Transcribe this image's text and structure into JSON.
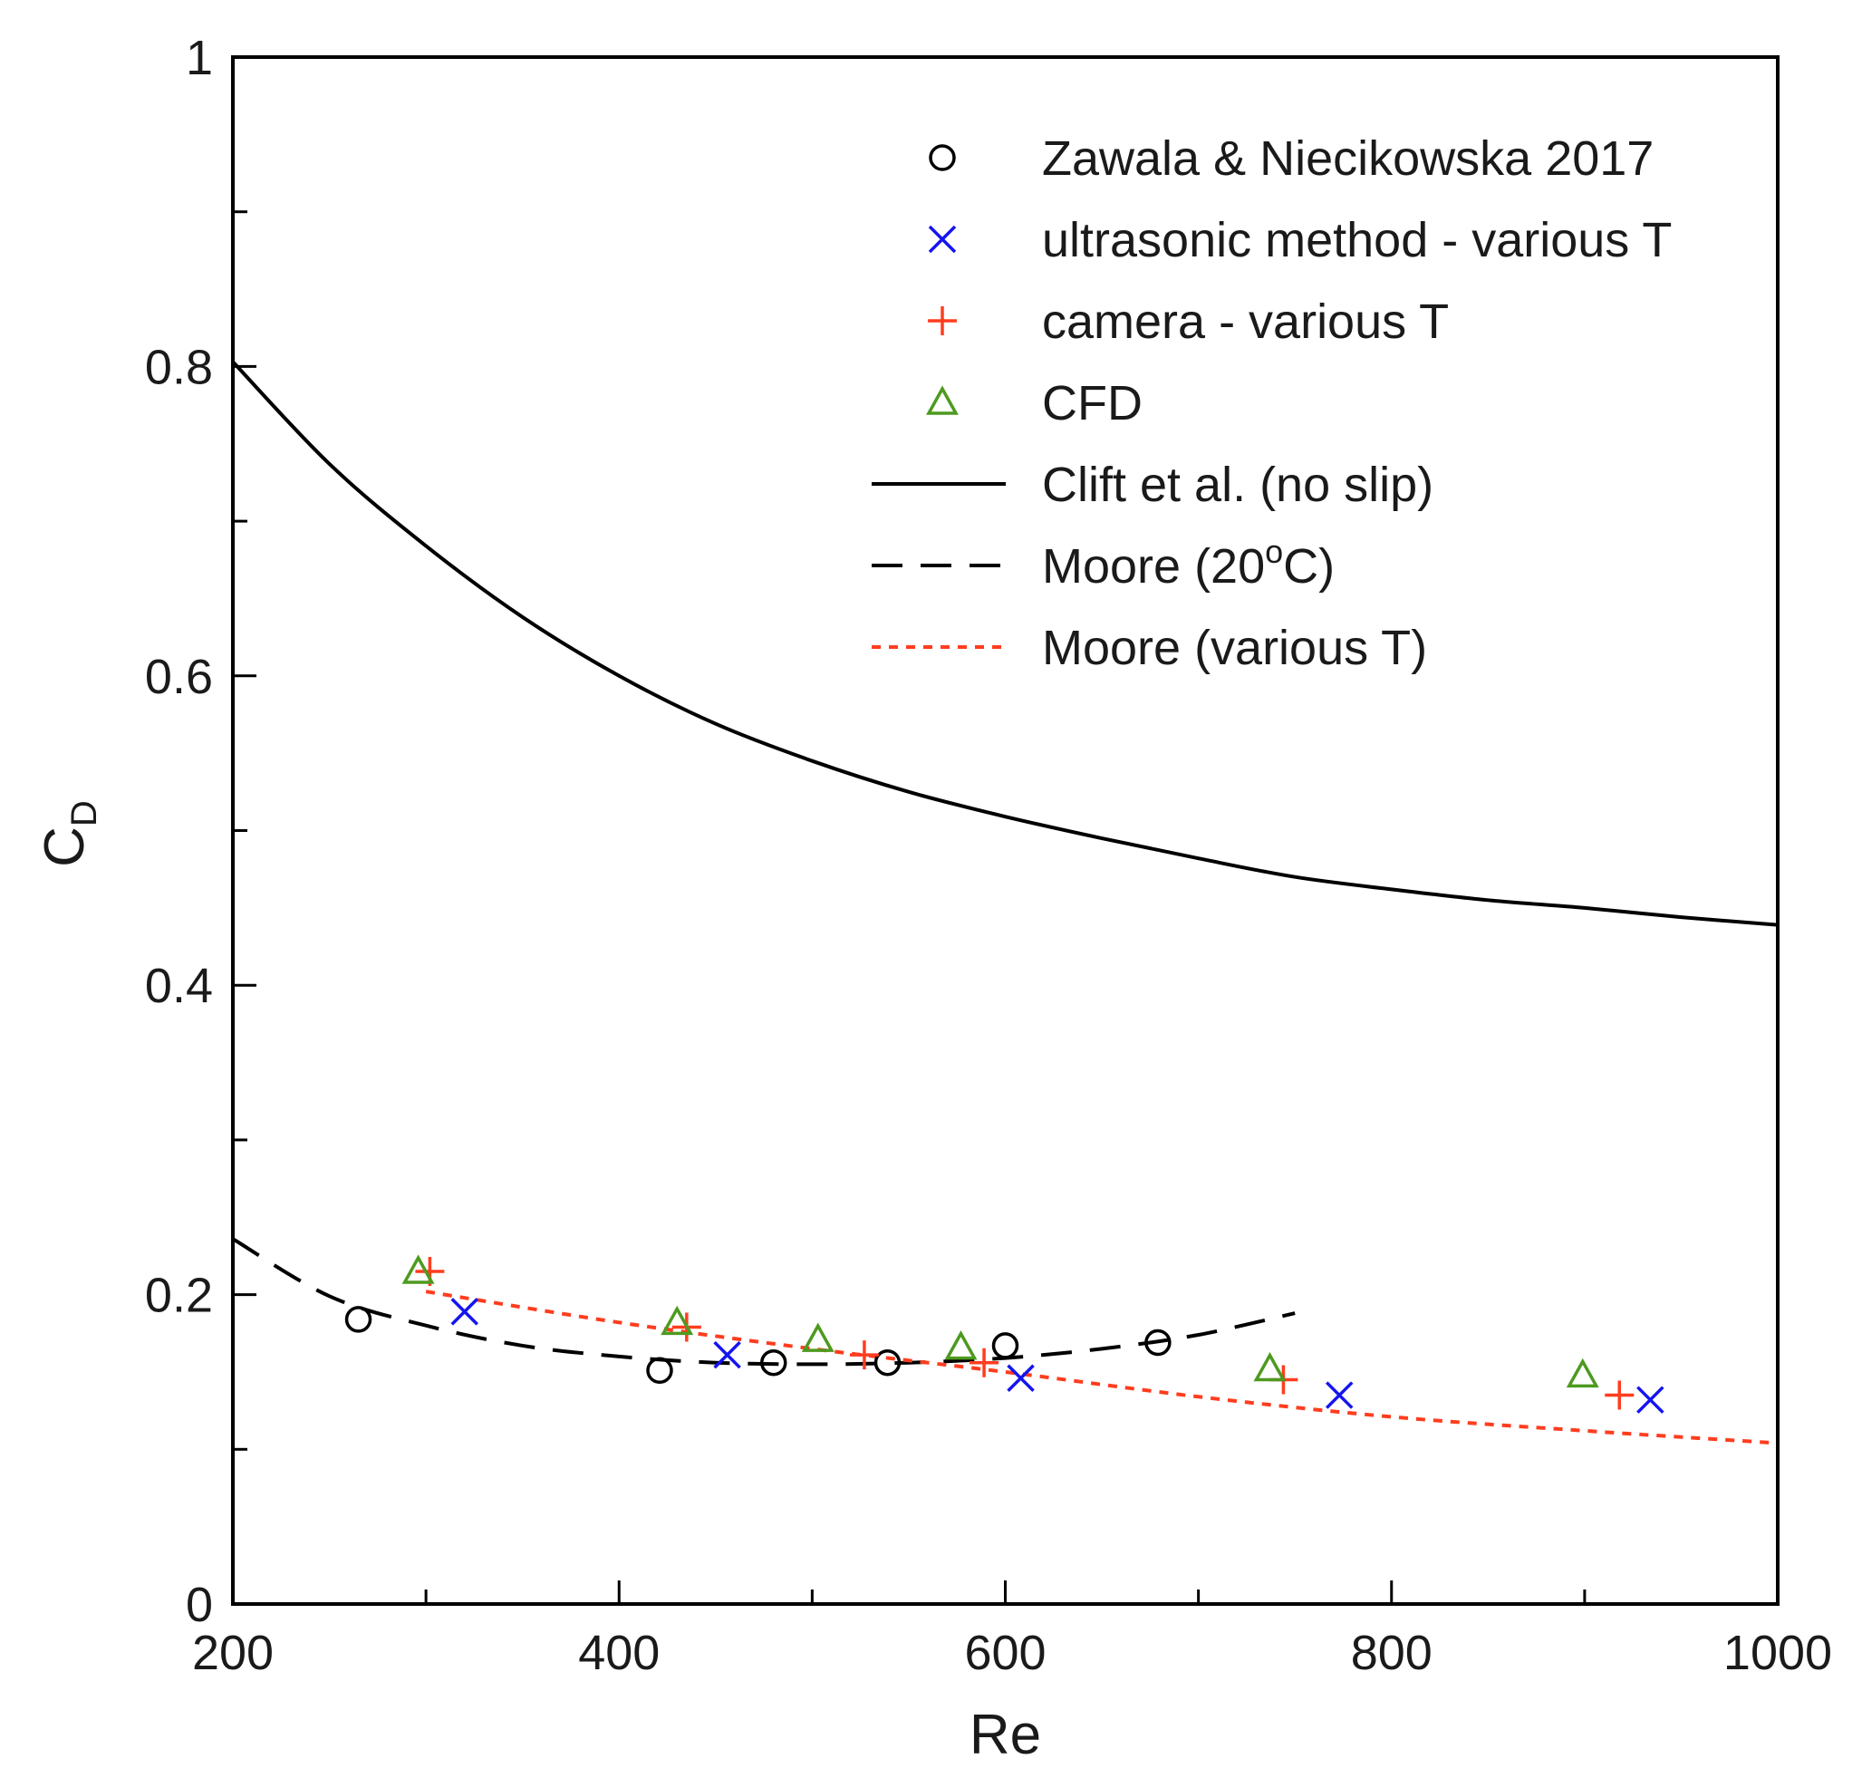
{
  "chart_data": {
    "type": "scatter",
    "xlabel": "Re",
    "ylabel": "C",
    "ylabel_subscript": "D",
    "xlim": [
      200,
      1000
    ],
    "ylim": [
      0,
      1
    ],
    "x_ticks": [
      200,
      400,
      600,
      800,
      1000
    ],
    "x_minor_ticks": [
      300,
      500,
      700,
      900
    ],
    "y_ticks": [
      0,
      0.2,
      0.4,
      0.6,
      0.8,
      1
    ],
    "y_tick_labels": [
      "0",
      "0.2",
      "0.4",
      "0.6",
      "0.8",
      "1"
    ],
    "y_minor_ticks": [
      0.1,
      0.3,
      0.5,
      0.7,
      0.9
    ],
    "legend_position": "top-right",
    "series": [
      {
        "name": "Zawala & Niecikowska 2017",
        "kind": "marker",
        "marker": "circle",
        "color": "#000000",
        "x": [
          265,
          421,
          480,
          539,
          600,
          679
        ],
        "y": [
          0.184,
          0.151,
          0.156,
          0.156,
          0.167,
          0.169
        ]
      },
      {
        "name": "ultrasonic method - various T",
        "kind": "marker",
        "marker": "x",
        "color": "#1414f0",
        "x": [
          320,
          456,
          608,
          773,
          934
        ],
        "y": [
          0.189,
          0.161,
          0.146,
          0.135,
          0.132
        ]
      },
      {
        "name": "camera - various T",
        "kind": "marker",
        "marker": "plus",
        "color": "#ff3d1f",
        "x": [
          302,
          435,
          527,
          589,
          744,
          918
        ],
        "y": [
          0.215,
          0.179,
          0.161,
          0.156,
          0.145,
          0.135
        ]
      },
      {
        "name": "CFD",
        "kind": "marker",
        "marker": "triangle",
        "color": "#4d9a1f",
        "x": [
          296,
          430,
          503,
          577,
          737,
          899
        ],
        "y": [
          0.215,
          0.182,
          0.171,
          0.166,
          0.152,
          0.148
        ]
      },
      {
        "name": "Clift et al. (no slip)",
        "kind": "line",
        "style": "solid",
        "color": "#000000",
        "x": [
          200,
          250,
          300,
          350,
          400,
          450,
          500,
          550,
          600,
          650,
          700,
          750,
          800,
          850,
          900,
          950,
          1000
        ],
        "y": [
          0.803,
          0.737,
          0.684,
          0.638,
          0.6,
          0.569,
          0.545,
          0.525,
          0.509,
          0.495,
          0.482,
          0.47,
          0.462,
          0.455,
          0.45,
          0.444,
          0.439
        ]
      },
      {
        "name": "Moore (20oC)",
        "kind": "line",
        "style": "dashed",
        "color": "#000000",
        "x": [
          200,
          250,
          300,
          350,
          400,
          450,
          500,
          550,
          600,
          650,
          700,
          750
        ],
        "y": [
          0.236,
          0.199,
          0.18,
          0.167,
          0.16,
          0.156,
          0.155,
          0.156,
          0.159,
          0.165,
          0.174,
          0.188
        ]
      },
      {
        "name": "Moore (various T)",
        "kind": "line",
        "style": "dotted",
        "color": "#ff3d1f",
        "x": [
          300,
          400,
          500,
          600,
          700,
          800,
          900,
          1000
        ],
        "y": [
          0.202,
          0.182,
          0.165,
          0.15,
          0.134,
          0.121,
          0.112,
          0.104
        ]
      }
    ]
  }
}
